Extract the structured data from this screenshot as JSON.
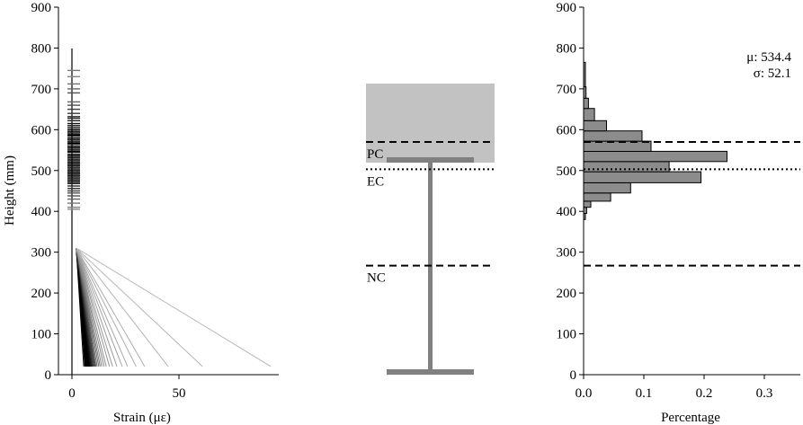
{
  "chart_data": [
    {
      "type": "line",
      "panel": "strain-profile",
      "xlabel": "Strain (με)",
      "ylabel": "Height (mm)",
      "xlim": [
        0,
        95
      ],
      "ylim": [
        0,
        900
      ],
      "xticks": [
        0,
        50
      ],
      "yticks": [
        0,
        100,
        200,
        300,
        400,
        500,
        600,
        700,
        800,
        900
      ],
      "grid": false,
      "strain_lines": {
        "top_height": 310,
        "bottom_height": 20,
        "top_strain": 2,
        "bottom_strain_samples": [
          5.5,
          6.0,
          6.2,
          6.5,
          6.8,
          7.0,
          7.2,
          7.5,
          7.7,
          8.0,
          8.2,
          8.5,
          8.8,
          9.0,
          9.3,
          9.6,
          10.0,
          10.4,
          10.8,
          11.2,
          11.8,
          12.5,
          13.2,
          14.0,
          15.0,
          16.0,
          17.5,
          19.0,
          21.0,
          23.5,
          26.0,
          30.0,
          34.0,
          45.0,
          61.0,
          93.0
        ],
        "bottom_strain_opacity": [
          1,
          1,
          1,
          1,
          1,
          1,
          1,
          1,
          1,
          1,
          1,
          0.95,
          0.9,
          0.9,
          0.85,
          0.8,
          0.75,
          0.7,
          0.65,
          0.6,
          0.55,
          0.5,
          0.45,
          0.4,
          0.38,
          0.35,
          0.32,
          0.3,
          0.28,
          0.25,
          0.22,
          0.2,
          0.2,
          0.18,
          0.16,
          0.15
        ]
      },
      "neutral_axis_heights": [
        745,
        730,
        712,
        700,
        690,
        668,
        660,
        650,
        640,
        632,
        628,
        622,
        615,
        610,
        605,
        600,
        596,
        592,
        588,
        585,
        580,
        576,
        572,
        568,
        565,
        560,
        556,
        552,
        548,
        545,
        540,
        536,
        532,
        528,
        524,
        520,
        516,
        512,
        508,
        504,
        500,
        496,
        492,
        488,
        484,
        480,
        476,
        472,
        468,
        462,
        456,
        450,
        445,
        438,
        430,
        420,
        410,
        405
      ],
      "neutral_axis_opacity": [
        0.4,
        0.35,
        0.45,
        0.5,
        0.6,
        0.5,
        0.6,
        0.7,
        0.7,
        0.8,
        0.8,
        0.8,
        0.9,
        0.9,
        0.9,
        1,
        1,
        1,
        1,
        1,
        1,
        1,
        1,
        1,
        1,
        1,
        1,
        1,
        1,
        1,
        1,
        1,
        1,
        1,
        1,
        1,
        1,
        1,
        1,
        1,
        1,
        1,
        1,
        1,
        1,
        1,
        0.9,
        0.9,
        0.9,
        0.8,
        0.8,
        0.7,
        0.6,
        0.6,
        0.5,
        0.4,
        0.35,
        0.3
      ]
    },
    {
      "type": "diagram",
      "panel": "beam-section",
      "deck_height_range": [
        525,
        710
      ],
      "girder_top_flange_height": 525,
      "girder_bottom_flange_height": 8,
      "reference_lines": [
        {
          "label": "PC",
          "height": 570,
          "style": "dashed"
        },
        {
          "label": "EC",
          "height": 503,
          "style": "dotted"
        },
        {
          "label": "NC",
          "height": 267,
          "style": "dashed"
        }
      ]
    },
    {
      "type": "bar",
      "panel": "histogram",
      "orientation": "horizontal",
      "xlabel": "Percentage",
      "ylabel": "",
      "xlim": [
        0,
        0.34
      ],
      "ylim": [
        0,
        900
      ],
      "xticks": [
        "0.0",
        "0.1",
        "0.2",
        "0.3"
      ],
      "yticks": [
        0,
        100,
        200,
        300,
        400,
        500,
        600,
        700,
        800,
        900
      ],
      "bins": [
        {
          "lo": 380,
          "hi": 395,
          "value": 0.003
        },
        {
          "lo": 395,
          "hi": 410,
          "value": 0.005
        },
        {
          "lo": 410,
          "hi": 425,
          "value": 0.012
        },
        {
          "lo": 425,
          "hi": 445,
          "value": 0.045
        },
        {
          "lo": 445,
          "hi": 470,
          "value": 0.078
        },
        {
          "lo": 470,
          "hi": 497,
          "value": 0.195
        },
        {
          "lo": 497,
          "hi": 522,
          "value": 0.142
        },
        {
          "lo": 522,
          "hi": 547,
          "value": 0.238
        },
        {
          "lo": 547,
          "hi": 572,
          "value": 0.112
        },
        {
          "lo": 572,
          "hi": 597,
          "value": 0.097
        },
        {
          "lo": 597,
          "hi": 622,
          "value": 0.038
        },
        {
          "lo": 622,
          "hi": 652,
          "value": 0.018
        },
        {
          "lo": 652,
          "hi": 677,
          "value": 0.008
        },
        {
          "lo": 677,
          "hi": 705,
          "value": 0.004
        },
        {
          "lo": 705,
          "hi": 765,
          "value": 0.003
        }
      ],
      "reference_lines": [
        {
          "height": 570,
          "style": "dashed"
        },
        {
          "height": 503,
          "style": "dotted"
        },
        {
          "height": 267,
          "style": "dashed"
        }
      ],
      "annotations": [
        "μ: 534.4",
        "σ: 52.1"
      ]
    }
  ]
}
